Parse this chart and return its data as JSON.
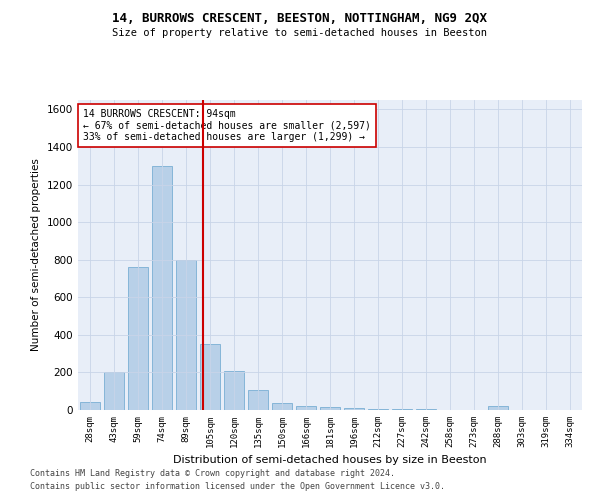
{
  "title1": "14, BURROWS CRESCENT, BEESTON, NOTTINGHAM, NG9 2QX",
  "title2": "Size of property relative to semi-detached houses in Beeston",
  "xlabel": "Distribution of semi-detached houses by size in Beeston",
  "ylabel": "Number of semi-detached properties",
  "footer1": "Contains HM Land Registry data © Crown copyright and database right 2024.",
  "footer2": "Contains public sector information licensed under the Open Government Licence v3.0.",
  "annotation_title": "14 BURROWS CRESCENT: 94sqm",
  "annotation_line1": "← 67% of semi-detached houses are smaller (2,597)",
  "annotation_line2": "33% of semi-detached houses are larger (1,299) →",
  "property_size": 94,
  "bar_color": "#b8d0e8",
  "bar_edge_color": "#7aafd4",
  "vline_color": "#cc0000",
  "annotation_box_color": "#ffffff",
  "annotation_box_edge": "#cc0000",
  "grid_color": "#c8d4e8",
  "bg_color": "#e8eef8",
  "categories": [
    "28sqm",
    "43sqm",
    "59sqm",
    "74sqm",
    "89sqm",
    "105sqm",
    "120sqm",
    "135sqm",
    "150sqm",
    "166sqm",
    "181sqm",
    "196sqm",
    "212sqm",
    "227sqm",
    "242sqm",
    "258sqm",
    "273sqm",
    "288sqm",
    "303sqm",
    "319sqm",
    "334sqm"
  ],
  "values": [
    40,
    200,
    760,
    1300,
    800,
    350,
    205,
    105,
    35,
    20,
    15,
    10,
    5,
    3,
    3,
    2,
    2,
    20,
    2,
    2,
    2
  ],
  "ylim": [
    0,
    1650
  ],
  "yticks": [
    0,
    200,
    400,
    600,
    800,
    1000,
    1200,
    1400,
    1600
  ],
  "vline_x": 4.72
}
